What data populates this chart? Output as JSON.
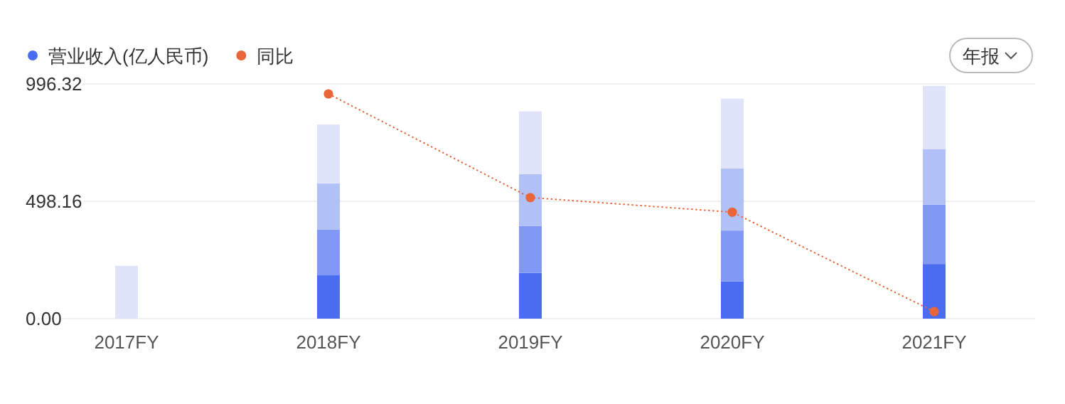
{
  "chart_data": {
    "type": "bar",
    "stacked": true,
    "categories": [
      "2017FY",
      "2018FY",
      "2019FY",
      "2020FY",
      "2021FY"
    ],
    "series": [
      {
        "name": "营业收入(亿人民币)",
        "color": "#4a6cf0",
        "values": [
          null,
          184,
          194,
          158,
          232
        ]
      },
      {
        "color": "#8199f5",
        "values": [
          null,
          194,
          200,
          216,
          252
        ]
      },
      {
        "color": "#b2c0f8",
        "values": [
          null,
          196,
          220,
          264,
          236
        ]
      },
      {
        "color": "#dfe4fb",
        "values": [
          224,
          250,
          266,
          296,
          268
        ]
      },
      {
        "name": "同比",
        "type": "line",
        "color": "#e8663a",
        "marker": "circle",
        "line_style": "dotted",
        "values": [
          null,
          954,
          514,
          452,
          30
        ]
      }
    ],
    "ylim": [
      0,
      996.32
    ],
    "yticks": [
      {
        "value": 0,
        "label": "0.00"
      },
      {
        "value": 498.16,
        "label": "498.16"
      },
      {
        "value": 996.32,
        "label": "996.32"
      }
    ],
    "grid": "y",
    "legend": "top left",
    "annotations": [
      "年报"
    ]
  }
}
